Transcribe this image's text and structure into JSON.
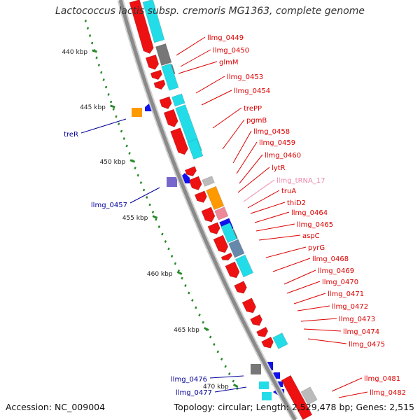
{
  "title": "Lactococcus lactis subsp. cremoris MG1363, complete genome",
  "accession": "Accession: NC_009004",
  "topology": "Topology: circular; Length: 2,529,478 bp; Genes: 2,515",
  "colors": {
    "backbone": "#8a8a8a",
    "gene_red": "#ee1111",
    "label_red": "#dd0000",
    "label_blue": "#000099",
    "label_pink": "#ee88aa",
    "cyan": "#22dde8",
    "gray": "#777777",
    "orange": "#ff9900",
    "blue": "#1111ee",
    "violet": "#7766cc",
    "steel": "#6688aa",
    "tick_green": "#2a8a2a"
  },
  "scale": {
    "tick_labels": [
      "440 kbp",
      "445 kbp",
      "450 kbp",
      "455 kbp",
      "460 kbp",
      "465 kbp",
      "470 kbp"
    ]
  },
  "genes_forward": [
    {
      "name": "llmg_0449",
      "kind": "protein"
    },
    {
      "name": "llmg_0450",
      "kind": "protein"
    },
    {
      "name": "glmM",
      "kind": "protein"
    },
    {
      "name": "llmg_0453",
      "kind": "protein"
    },
    {
      "name": "llmg_0454",
      "kind": "protein"
    },
    {
      "name": "trePP",
      "kind": "protein"
    },
    {
      "name": "pgmB",
      "kind": "protein"
    },
    {
      "name": "llmg_0458",
      "kind": "protein"
    },
    {
      "name": "llmg_0459",
      "kind": "protein"
    },
    {
      "name": "llmg_0460",
      "kind": "protein"
    },
    {
      "name": "lytR",
      "kind": "protein"
    },
    {
      "name": "llmg_tRNA_17",
      "kind": "tRNA"
    },
    {
      "name": "truA",
      "kind": "protein"
    },
    {
      "name": "thiD2",
      "kind": "protein"
    },
    {
      "name": "llmg_0464",
      "kind": "protein"
    },
    {
      "name": "llmg_0465",
      "kind": "protein"
    },
    {
      "name": "aspC",
      "kind": "protein"
    },
    {
      "name": "pyrG",
      "kind": "protein"
    },
    {
      "name": "llmg_0468",
      "kind": "protein"
    },
    {
      "name": "llmg_0469",
      "kind": "protein"
    },
    {
      "name": "llmg_0470",
      "kind": "protein"
    },
    {
      "name": "llmg_0471",
      "kind": "protein"
    },
    {
      "name": "llmg_0472",
      "kind": "protein"
    },
    {
      "name": "llmg_0473",
      "kind": "protein"
    },
    {
      "name": "llmg_0474",
      "kind": "protein"
    },
    {
      "name": "llmg_0475",
      "kind": "protein"
    },
    {
      "name": "llmg_0481",
      "kind": "protein"
    },
    {
      "name": "llmg_0482",
      "kind": "protein"
    }
  ],
  "genes_reverse": [
    {
      "name": "treR"
    },
    {
      "name": "llmg_0457"
    },
    {
      "name": "llmg_0476"
    },
    {
      "name": "llmg_0477"
    }
  ]
}
